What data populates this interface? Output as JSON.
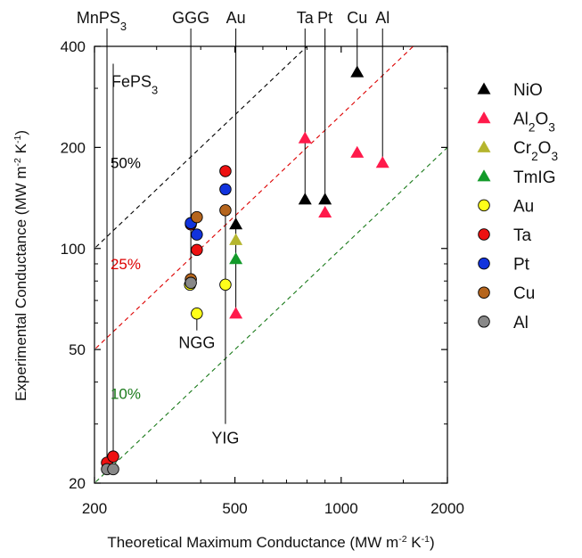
{
  "chart_data": {
    "type": "scatter",
    "x_scale": "log",
    "y_scale": "log",
    "xlabel": "Theoretical Maximum Conductance (MW m",
    "xlabel_sup1": "-2",
    "xlabel_mid": " K",
    "xlabel_sup2": "-1",
    "xlabel_end": ")",
    "ylabel": "Experimental Conductance (MW m",
    "ylabel_sup1": "-2",
    "ylabel_mid": " K",
    "ylabel_sup2": "-1",
    "ylabel_end": ")",
    "xlim": [
      200,
      2000
    ],
    "ylim": [
      20,
      400
    ],
    "x_ticks": [
      200,
      500,
      1000,
      2000
    ],
    "x_tick_labels": [
      "200",
      "500",
      "1000",
      "2000"
    ],
    "y_ticks": [
      20,
      50,
      100,
      200,
      400
    ],
    "y_tick_labels": [
      "20",
      "50",
      "100",
      "200",
      "400"
    ],
    "grid": false,
    "legend_position": "right",
    "reference_lines": [
      {
        "label": "50%",
        "fraction": 0.5,
        "color": "#000000",
        "label_at": [
          222,
          180
        ]
      },
      {
        "label": "25%",
        "fraction": 0.25,
        "color": "#dd0000",
        "label_at": [
          222,
          90
        ]
      },
      {
        "label": "10%",
        "fraction": 0.1,
        "color": "#1a7a1a",
        "label_at": [
          222,
          37
        ]
      }
    ],
    "legend": [
      {
        "label": "NiO",
        "sub": "",
        "tail": "",
        "marker": "triangle",
        "color": "#000000"
      },
      {
        "label": "Al",
        "sub": "2",
        "tail": "O",
        "sub2": "3",
        "marker": "triangle",
        "color": "#ff1a4b"
      },
      {
        "label": "Cr",
        "sub": "2",
        "tail": "O",
        "sub2": "3",
        "marker": "triangle",
        "color": "#b5b52e"
      },
      {
        "label": "TmIG",
        "sub": "",
        "tail": "",
        "marker": "triangle",
        "color": "#139a2a"
      },
      {
        "label": "Au",
        "sub": "",
        "tail": "",
        "marker": "circle",
        "color": "#ffff1a"
      },
      {
        "label": "Ta",
        "sub": "",
        "tail": "",
        "marker": "circle",
        "color": "#ee1111"
      },
      {
        "label": "Pt",
        "sub": "",
        "tail": "",
        "marker": "circle",
        "color": "#1133dd"
      },
      {
        "label": "Cu",
        "sub": "",
        "tail": "",
        "marker": "circle",
        "color": "#b5651d"
      },
      {
        "label": "Al",
        "sub": "",
        "tail": "",
        "marker": "circle",
        "color": "#888888"
      }
    ],
    "series": [
      {
        "name": "NiO",
        "marker": "triangle",
        "color": "#000000",
        "points": [
          {
            "x": 503,
            "y": 118
          },
          {
            "x": 790,
            "y": 140
          },
          {
            "x": 900,
            "y": 140
          },
          {
            "x": 1110,
            "y": 335
          }
        ]
      },
      {
        "name": "Al2O3",
        "marker": "triangle",
        "color": "#ff1a4b",
        "points": [
          {
            "x": 503,
            "y": 64
          },
          {
            "x": 790,
            "y": 213
          },
          {
            "x": 900,
            "y": 128
          },
          {
            "x": 1110,
            "y": 193
          },
          {
            "x": 1310,
            "y": 180
          }
        ]
      },
      {
        "name": "Cr2O3",
        "marker": "triangle",
        "color": "#b5b52e",
        "points": [
          {
            "x": 503,
            "y": 106
          }
        ]
      },
      {
        "name": "TmIG",
        "marker": "triangle",
        "color": "#139a2a",
        "points": [
          {
            "x": 503,
            "y": 93
          }
        ]
      },
      {
        "name": "Au",
        "marker": "circle",
        "color": "#ffff1a",
        "points": [
          {
            "x": 373,
            "y": 78
          },
          {
            "x": 390,
            "y": 64
          },
          {
            "x": 470,
            "y": 78
          }
        ]
      },
      {
        "name": "Ta",
        "marker": "circle",
        "color": "#ee1111",
        "points": [
          {
            "x": 217,
            "y": 23
          },
          {
            "x": 226,
            "y": 24
          },
          {
            "x": 375,
            "y": 118
          },
          {
            "x": 390,
            "y": 99
          },
          {
            "x": 470,
            "y": 170
          }
        ]
      },
      {
        "name": "Pt",
        "marker": "circle",
        "color": "#1133dd",
        "points": [
          {
            "x": 375,
            "y": 119
          },
          {
            "x": 390,
            "y": 110
          },
          {
            "x": 470,
            "y": 150
          }
        ]
      },
      {
        "name": "Cu",
        "marker": "circle",
        "color": "#b5651d",
        "points": [
          {
            "x": 375,
            "y": 81
          },
          {
            "x": 390,
            "y": 124
          },
          {
            "x": 470,
            "y": 130
          }
        ]
      },
      {
        "name": "Al",
        "marker": "circle",
        "color": "#888888",
        "points": [
          {
            "x": 217,
            "y": 22
          },
          {
            "x": 226,
            "y": 22
          },
          {
            "x": 375,
            "y": 79
          }
        ]
      }
    ],
    "annotations_top": [
      {
        "label": "MnPS",
        "sub": "3",
        "x": 217,
        "line_to_y": 23
      },
      {
        "label": "GGG",
        "sub": "",
        "x": 375,
        "line_to_y": 79
      },
      {
        "label": "Au",
        "sub": "",
        "x": 503,
        "line_to_y": 64
      },
      {
        "label": "Ta",
        "sub": "",
        "x": 790,
        "line_to_y": 140
      },
      {
        "label": "Pt",
        "sub": "",
        "x": 900,
        "line_to_y": 140
      },
      {
        "label": "Cu",
        "sub": "",
        "x": 1110,
        "line_to_y": 335
      },
      {
        "label": "Al",
        "sub": "",
        "x": 1310,
        "line_to_y": 180
      }
    ],
    "annotations_inner": [
      {
        "label": "FePS",
        "sub": "3",
        "x": 226,
        "line_from_y": 355,
        "line_to_y": 24
      },
      {
        "label": "NGG",
        "sub": "",
        "x": 390,
        "line_from_y": 64,
        "line_to_y": 57
      },
      {
        "label": "YIG",
        "sub": "",
        "x": 470,
        "line_from_y": 130,
        "line_to_y": 30
      }
    ]
  }
}
